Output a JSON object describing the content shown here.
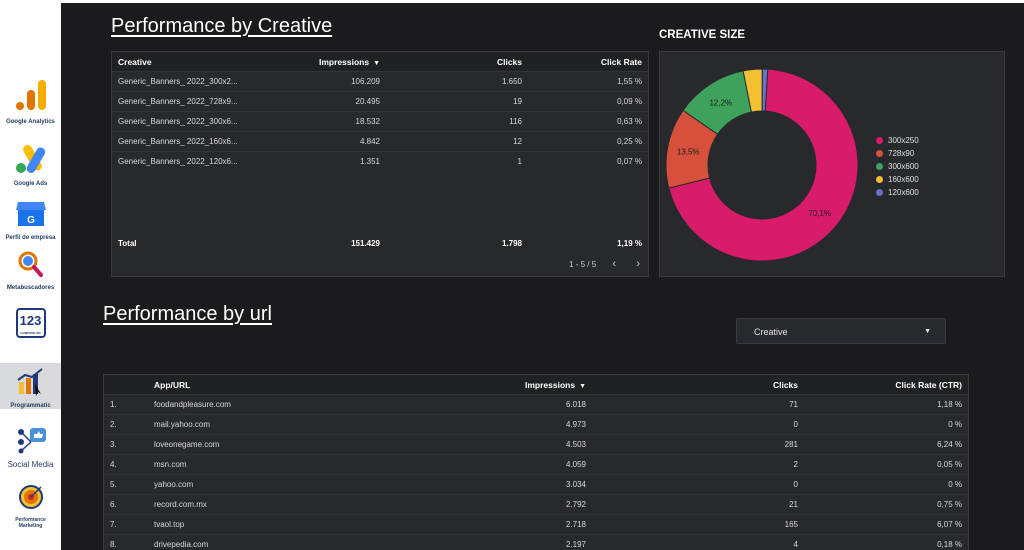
{
  "sidebar": {
    "items": [
      {
        "label": "Google Analytics"
      },
      {
        "label": "Google Ads"
      },
      {
        "label": "Perfil de empresa"
      },
      {
        "label": "Metabuscadores"
      },
      {
        "label": "123",
        "sub": "COMPARE.MX"
      },
      {
        "label": "Programmatic"
      },
      {
        "label": "Social Media"
      },
      {
        "label": "Performance Marketing"
      }
    ]
  },
  "creative_section": {
    "title": "Performance by Creative",
    "columns": [
      "Creative",
      "Impressions",
      "Clicks",
      "Click Rate"
    ],
    "rows": [
      {
        "creative": "Generic_Banners_ 2022_300x2...",
        "impressions": "106.209",
        "clicks": "1.650",
        "rate": "1,55 %"
      },
      {
        "creative": "Generic_Banners_ 2022_728x9...",
        "impressions": "20.495",
        "clicks": "19",
        "rate": "0,09 %"
      },
      {
        "creative": "Generic_Banners_ 2022_300x6...",
        "impressions": "18.532",
        "clicks": "116",
        "rate": "0,63 %"
      },
      {
        "creative": "Generic_Banners_ 2022_160x6...",
        "impressions": "4.842",
        "clicks": "12",
        "rate": "0,25 %"
      },
      {
        "creative": "Generic_Banners_ 2022_120x6...",
        "impressions": "1.351",
        "clicks": "1",
        "rate": "0,07 %"
      }
    ],
    "total": {
      "label": "Total",
      "impressions": "151.429",
      "clicks": "1.798",
      "rate": "1,19 %"
    },
    "pager": "1 - 5 / 5"
  },
  "creative_size": {
    "title": "CREATIVE SIZE"
  },
  "chart_data": {
    "type": "pie",
    "title": "CREATIVE SIZE",
    "categories": [
      "300x250",
      "728x90",
      "300x600",
      "160x600",
      "120x600"
    ],
    "values": [
      70.1,
      13.5,
      12.2,
      3.2,
      0.9
    ],
    "data_labels": [
      "70,1%",
      "13,5%",
      "12,2%",
      "",
      ""
    ],
    "colors": [
      "#d81b6a",
      "#d6503c",
      "#3fa25c",
      "#f2bf30",
      "#6672c9"
    ],
    "donut": true,
    "legend_position": "right"
  },
  "url_section": {
    "title": "Performance by url",
    "dropdown_label": "Creative",
    "columns": [
      "App/URL",
      "Impressions",
      "Clicks",
      "Click Rate (CTR)"
    ],
    "rows": [
      {
        "n": "1.",
        "url": "foodandpleasure.com",
        "impressions": "6.018",
        "clicks": "71",
        "ctr": "1,18 %"
      },
      {
        "n": "2.",
        "url": "mail.yahoo.com",
        "impressions": "4.973",
        "clicks": "0",
        "ctr": "0 %"
      },
      {
        "n": "3.",
        "url": "loveonegame.com",
        "impressions": "4.503",
        "clicks": "281",
        "ctr": "6,24 %"
      },
      {
        "n": "4.",
        "url": "msn.com",
        "impressions": "4.059",
        "clicks": "2",
        "ctr": "0,05 %"
      },
      {
        "n": "5.",
        "url": "yahoo.com",
        "impressions": "3.034",
        "clicks": "0",
        "ctr": "0 %"
      },
      {
        "n": "6.",
        "url": "record.com.mx",
        "impressions": "2.792",
        "clicks": "21",
        "ctr": "0,75 %"
      },
      {
        "n": "7.",
        "url": "tvaol.top",
        "impressions": "2.718",
        "clicks": "165",
        "ctr": "6,07 %"
      },
      {
        "n": "8.",
        "url": "drivepedia.com",
        "impressions": "2.197",
        "clicks": "4",
        "ctr": "0,18 %"
      }
    ]
  }
}
